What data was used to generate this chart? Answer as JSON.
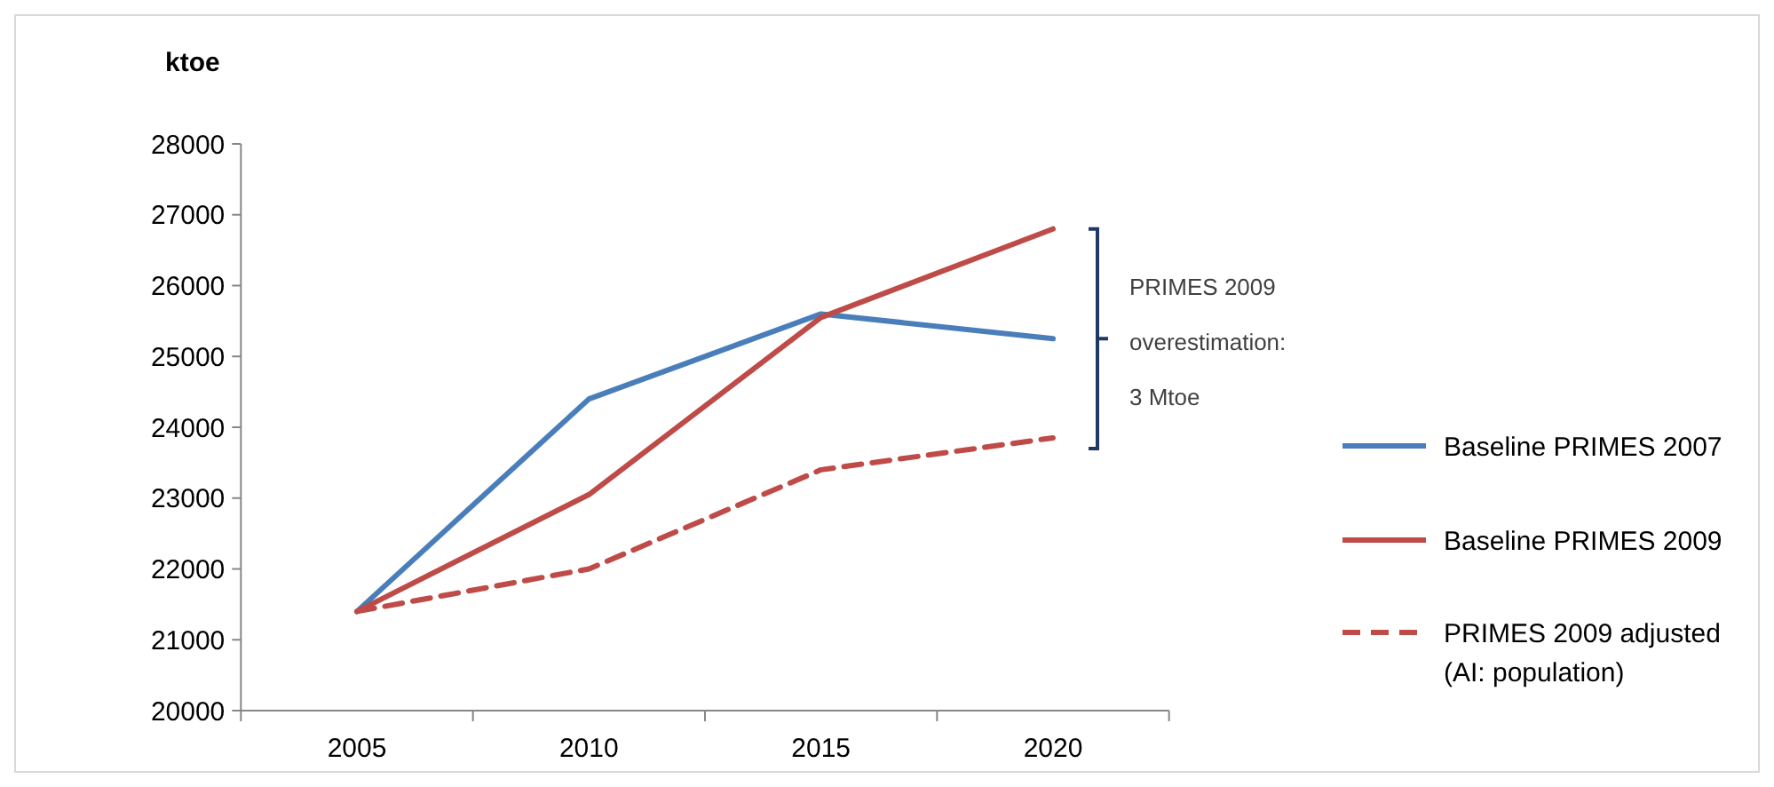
{
  "chart_data": {
    "type": "line",
    "ylabel": "ktoe",
    "categories": [
      "2005",
      "2010",
      "2015",
      "2020"
    ],
    "series": [
      {
        "name": "Baseline PRIMES 2007",
        "color": "#4a7ebb",
        "values": [
          21400,
          24400,
          25600,
          25250
        ],
        "line_style": "solid"
      },
      {
        "name": "Baseline PRIMES 2009",
        "color": "#be4b48",
        "values": [
          21400,
          23050,
          25550,
          26800
        ],
        "line_style": "solid"
      },
      {
        "name": "PRIMES 2009 adjusted (AI: population)",
        "color": "#be4b48",
        "values": [
          21400,
          22000,
          23400,
          23850
        ],
        "line_style": "dashed"
      }
    ],
    "ylim": [
      20000,
      28000
    ],
    "yticks": [
      20000,
      21000,
      22000,
      23000,
      24000,
      25000,
      26000,
      27000,
      28000
    ],
    "annotations": [
      "PRIMES 2009 overestimation: 3 Mtoe"
    ],
    "legend": "right",
    "grid": false,
    "marker": "none"
  }
}
